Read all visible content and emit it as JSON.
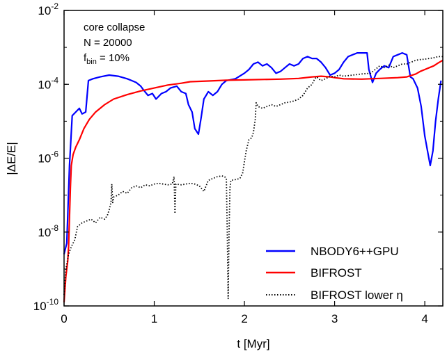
{
  "chart_data": {
    "type": "line",
    "xlabel": "t [Myr]",
    "ylabel": "|ΔE/E|",
    "xlim": [
      0,
      4.2
    ],
    "ylim_log10": [
      -10,
      -2
    ],
    "yscale": "log",
    "xticks": [
      0,
      1,
      2,
      3,
      4
    ],
    "yticks_exp": [
      -10,
      -8,
      -6,
      -4,
      -2
    ],
    "ytick_base": "10",
    "grid": false,
    "legend_placement": "lower-right",
    "annotation": {
      "line1": "core collapse",
      "line2": "N = 20000",
      "line3_main": "f",
      "line3_sub": "bin",
      "line3_rest": " = 10%"
    },
    "series": [
      {
        "name": "NBODY6++GPU",
        "color": "#0000ff",
        "style": "solid",
        "points": [
          [
            0.0,
            -8.6
          ],
          [
            0.03,
            -8.3
          ],
          [
            0.06,
            -6.2
          ],
          [
            0.09,
            -4.85
          ],
          [
            0.13,
            -4.75
          ],
          [
            0.17,
            -4.65
          ],
          [
            0.2,
            -4.8
          ],
          [
            0.24,
            -4.75
          ],
          [
            0.27,
            -3.9
          ],
          [
            0.32,
            -3.85
          ],
          [
            0.4,
            -3.8
          ],
          [
            0.5,
            -3.75
          ],
          [
            0.6,
            -3.78
          ],
          [
            0.7,
            -3.85
          ],
          [
            0.75,
            -3.9
          ],
          [
            0.8,
            -3.95
          ],
          [
            0.85,
            -4.05
          ],
          [
            0.88,
            -4.15
          ],
          [
            0.93,
            -4.3
          ],
          [
            0.98,
            -4.25
          ],
          [
            1.02,
            -4.4
          ],
          [
            1.08,
            -4.25
          ],
          [
            1.13,
            -4.2
          ],
          [
            1.18,
            -4.1
          ],
          [
            1.25,
            -4.05
          ],
          [
            1.3,
            -4.2
          ],
          [
            1.35,
            -4.25
          ],
          [
            1.38,
            -4.55
          ],
          [
            1.42,
            -4.75
          ],
          [
            1.45,
            -5.2
          ],
          [
            1.49,
            -5.35
          ],
          [
            1.52,
            -4.9
          ],
          [
            1.55,
            -4.4
          ],
          [
            1.6,
            -4.2
          ],
          [
            1.65,
            -4.3
          ],
          [
            1.7,
            -4.2
          ],
          [
            1.75,
            -4.0
          ],
          [
            1.8,
            -3.9
          ],
          [
            1.9,
            -3.85
          ],
          [
            2.0,
            -3.7
          ],
          [
            2.05,
            -3.6
          ],
          [
            2.1,
            -3.45
          ],
          [
            2.15,
            -3.4
          ],
          [
            2.2,
            -3.5
          ],
          [
            2.25,
            -3.45
          ],
          [
            2.3,
            -3.55
          ],
          [
            2.35,
            -3.7
          ],
          [
            2.4,
            -3.65
          ],
          [
            2.45,
            -3.55
          ],
          [
            2.5,
            -3.45
          ],
          [
            2.55,
            -3.5
          ],
          [
            2.6,
            -3.45
          ],
          [
            2.65,
            -3.3
          ],
          [
            2.7,
            -3.25
          ],
          [
            2.75,
            -3.3
          ],
          [
            2.8,
            -3.3
          ],
          [
            2.85,
            -3.4
          ],
          [
            2.9,
            -3.55
          ],
          [
            2.95,
            -3.75
          ],
          [
            3.0,
            -3.7
          ],
          [
            3.05,
            -3.6
          ],
          [
            3.1,
            -3.4
          ],
          [
            3.15,
            -3.25
          ],
          [
            3.25,
            -3.15
          ],
          [
            3.3,
            -3.15
          ],
          [
            3.36,
            -3.15
          ],
          [
            3.38,
            -3.6
          ],
          [
            3.42,
            -3.95
          ],
          [
            3.46,
            -3.7
          ],
          [
            3.5,
            -3.6
          ],
          [
            3.55,
            -3.5
          ],
          [
            3.6,
            -3.55
          ],
          [
            3.65,
            -3.25
          ],
          [
            3.7,
            -3.2
          ],
          [
            3.75,
            -3.15
          ],
          [
            3.8,
            -3.2
          ],
          [
            3.84,
            -3.8
          ],
          [
            3.87,
            -3.85
          ],
          [
            3.92,
            -4.1
          ],
          [
            3.96,
            -4.6
          ],
          [
            4.0,
            -5.4
          ],
          [
            4.03,
            -5.8
          ],
          [
            4.06,
            -6.2
          ],
          [
            4.09,
            -5.8
          ],
          [
            4.12,
            -5.0
          ],
          [
            4.15,
            -4.4
          ],
          [
            4.18,
            -3.9
          ]
        ]
      },
      {
        "name": "BIFROST",
        "color": "#ff0000",
        "style": "solid",
        "points": [
          [
            0.0,
            -9.9
          ],
          [
            0.02,
            -9.2
          ],
          [
            0.04,
            -8.8
          ],
          [
            0.05,
            -8.4
          ],
          [
            0.06,
            -7.6
          ],
          [
            0.07,
            -6.8
          ],
          [
            0.08,
            -6.2
          ],
          [
            0.1,
            -5.9
          ],
          [
            0.13,
            -5.7
          ],
          [
            0.17,
            -5.5
          ],
          [
            0.22,
            -5.2
          ],
          [
            0.28,
            -4.95
          ],
          [
            0.35,
            -4.75
          ],
          [
            0.45,
            -4.55
          ],
          [
            0.55,
            -4.4
          ],
          [
            0.7,
            -4.28
          ],
          [
            0.85,
            -4.18
          ],
          [
            1.0,
            -4.1
          ],
          [
            1.15,
            -4.02
          ],
          [
            1.3,
            -3.97
          ],
          [
            1.4,
            -3.93
          ],
          [
            1.6,
            -3.91
          ],
          [
            1.8,
            -3.89
          ],
          [
            2.0,
            -3.88
          ],
          [
            2.2,
            -3.87
          ],
          [
            2.4,
            -3.86
          ],
          [
            2.6,
            -3.84
          ],
          [
            2.75,
            -3.8
          ],
          [
            2.85,
            -3.78
          ],
          [
            2.95,
            -3.8
          ],
          [
            3.0,
            -3.82
          ],
          [
            3.1,
            -3.85
          ],
          [
            3.3,
            -3.86
          ],
          [
            3.5,
            -3.84
          ],
          [
            3.7,
            -3.82
          ],
          [
            3.8,
            -3.8
          ],
          [
            3.9,
            -3.72
          ],
          [
            3.95,
            -3.65
          ],
          [
            4.0,
            -3.6
          ],
          [
            4.05,
            -3.55
          ],
          [
            4.1,
            -3.5
          ],
          [
            4.15,
            -3.42
          ],
          [
            4.2,
            -3.35
          ]
        ]
      },
      {
        "name": "BIFROST lower η",
        "color": "#000000",
        "style": "dotted",
        "points": [
          [
            0.0,
            -9.7
          ],
          [
            0.02,
            -9.0
          ],
          [
            0.05,
            -8.6
          ],
          [
            0.08,
            -8.4
          ],
          [
            0.12,
            -8.2
          ],
          [
            0.15,
            -7.85
          ],
          [
            0.2,
            -7.75
          ],
          [
            0.25,
            -7.7
          ],
          [
            0.3,
            -7.65
          ],
          [
            0.35,
            -7.75
          ],
          [
            0.4,
            -7.6
          ],
          [
            0.45,
            -7.65
          ],
          [
            0.48,
            -7.55
          ],
          [
            0.5,
            -7.4
          ],
          [
            0.52,
            -7.2
          ],
          [
            0.53,
            -6.7
          ],
          [
            0.54,
            -7.2
          ],
          [
            0.55,
            -7.05
          ],
          [
            0.6,
            -7.0
          ],
          [
            0.65,
            -6.9
          ],
          [
            0.7,
            -6.95
          ],
          [
            0.75,
            -6.8
          ],
          [
            0.8,
            -6.75
          ],
          [
            0.85,
            -6.8
          ],
          [
            0.9,
            -6.72
          ],
          [
            0.95,
            -6.75
          ],
          [
            1.0,
            -6.7
          ],
          [
            1.05,
            -6.68
          ],
          [
            1.1,
            -6.7
          ],
          [
            1.15,
            -6.72
          ],
          [
            1.2,
            -6.7
          ],
          [
            1.22,
            -6.5
          ],
          [
            1.23,
            -7.5
          ],
          [
            1.24,
            -6.7
          ],
          [
            1.3,
            -6.72
          ],
          [
            1.35,
            -6.7
          ],
          [
            1.4,
            -6.68
          ],
          [
            1.45,
            -6.7
          ],
          [
            1.5,
            -6.75
          ],
          [
            1.55,
            -6.9
          ],
          [
            1.6,
            -6.6
          ],
          [
            1.65,
            -6.55
          ],
          [
            1.7,
            -6.5
          ],
          [
            1.75,
            -6.48
          ],
          [
            1.78,
            -6.5
          ],
          [
            1.8,
            -6.55
          ],
          [
            1.81,
            -8.0
          ],
          [
            1.82,
            -9.8
          ],
          [
            1.83,
            -8.0
          ],
          [
            1.84,
            -6.8
          ],
          [
            1.85,
            -6.6
          ],
          [
            1.9,
            -6.58
          ],
          [
            1.95,
            -6.55
          ],
          [
            1.98,
            -6.4
          ],
          [
            2.0,
            -6.1
          ],
          [
            2.02,
            -5.8
          ],
          [
            2.05,
            -5.5
          ],
          [
            2.08,
            -5.45
          ],
          [
            2.1,
            -5.3
          ],
          [
            2.12,
            -4.95
          ],
          [
            2.13,
            -4.5
          ],
          [
            2.15,
            -4.6
          ],
          [
            2.2,
            -4.65
          ],
          [
            2.25,
            -4.6
          ],
          [
            2.3,
            -4.55
          ],
          [
            2.35,
            -4.6
          ],
          [
            2.4,
            -4.55
          ],
          [
            2.45,
            -4.5
          ],
          [
            2.5,
            -4.48
          ],
          [
            2.55,
            -4.45
          ],
          [
            2.6,
            -4.4
          ],
          [
            2.65,
            -4.3
          ],
          [
            2.7,
            -4.1
          ],
          [
            2.75,
            -4.0
          ],
          [
            2.78,
            -3.85
          ],
          [
            2.8,
            -3.8
          ],
          [
            2.85,
            -3.9
          ],
          [
            2.9,
            -3.85
          ],
          [
            2.95,
            -3.78
          ],
          [
            3.0,
            -3.8
          ],
          [
            3.05,
            -3.75
          ],
          [
            3.1,
            -3.78
          ],
          [
            3.2,
            -3.75
          ],
          [
            3.3,
            -3.72
          ],
          [
            3.4,
            -3.7
          ],
          [
            3.5,
            -3.5
          ],
          [
            3.55,
            -3.55
          ],
          [
            3.6,
            -3.48
          ],
          [
            3.65,
            -3.55
          ],
          [
            3.7,
            -3.5
          ],
          [
            3.75,
            -3.45
          ],
          [
            3.8,
            -3.45
          ],
          [
            3.85,
            -3.4
          ],
          [
            3.9,
            -3.35
          ],
          [
            3.95,
            -3.33
          ],
          [
            4.0,
            -3.32
          ],
          [
            4.05,
            -3.3
          ],
          [
            4.1,
            -3.28
          ],
          [
            4.15,
            -3.25
          ],
          [
            4.2,
            -3.25
          ]
        ]
      }
    ]
  }
}
